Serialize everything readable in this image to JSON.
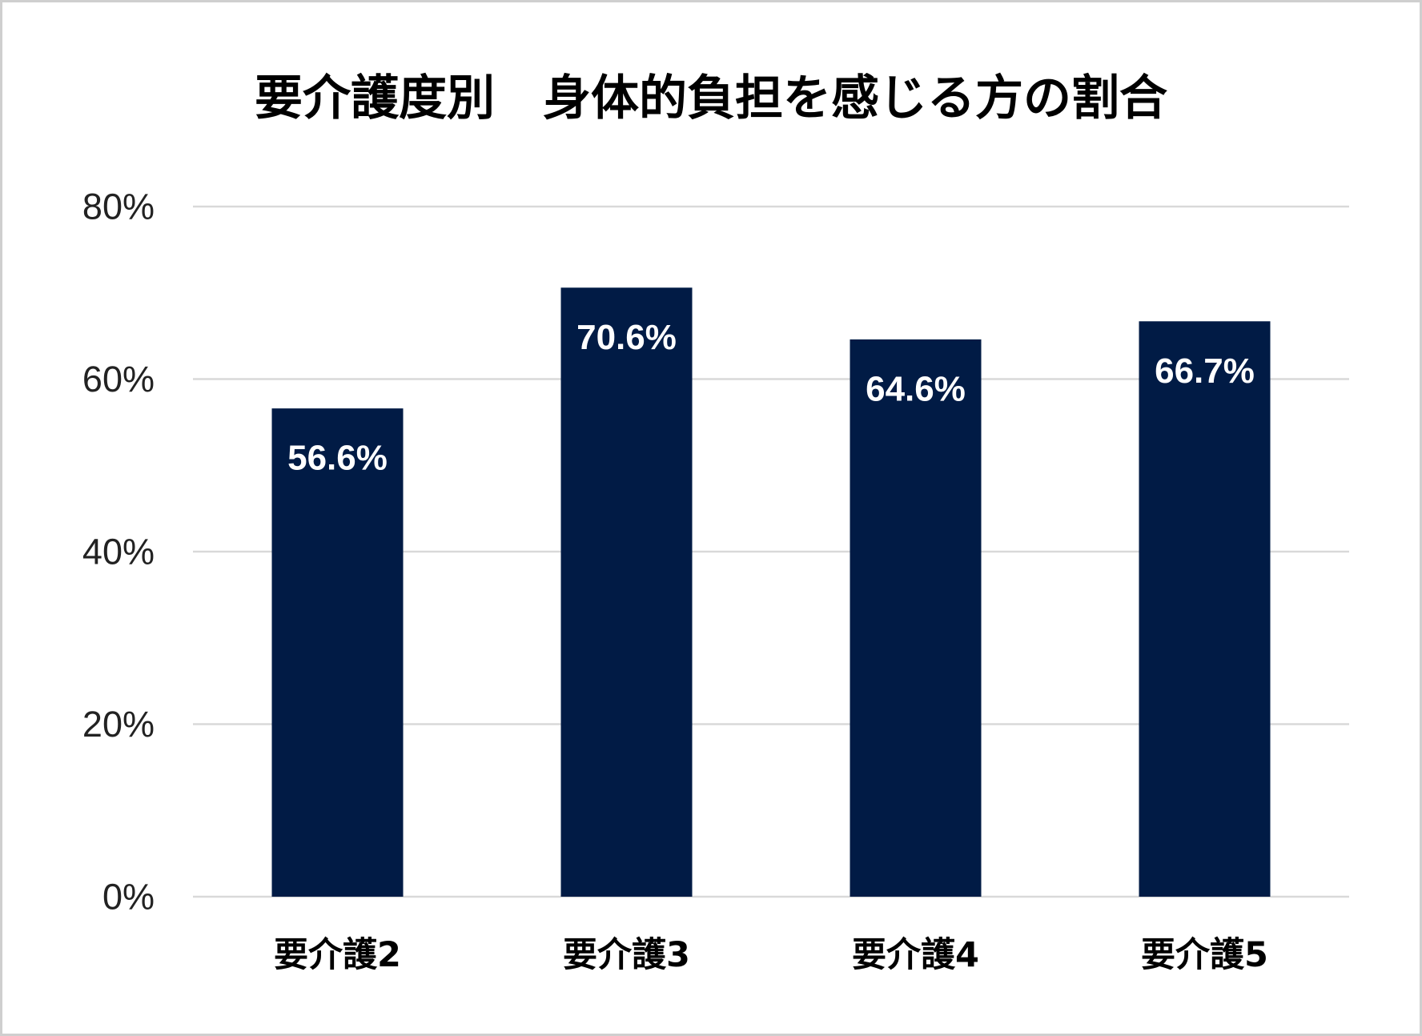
{
  "chart_data": {
    "type": "bar",
    "title": "要介護度別　身体的負担を感じる方の割合",
    "categories": [
      "要介護2",
      "要介護3",
      "要介護4",
      "要介護5"
    ],
    "values": [
      56.6,
      70.6,
      64.6,
      66.7
    ],
    "data_labels": [
      "56.6%",
      "70.6%",
      "64.6%",
      "66.7%"
    ],
    "y_ticks": [
      {
        "value": 0,
        "label": "0%"
      },
      {
        "value": 20,
        "label": "20%"
      },
      {
        "value": 40,
        "label": "40%"
      },
      {
        "value": 60,
        "label": "60%"
      },
      {
        "value": 80,
        "label": "80%"
      }
    ],
    "ylim": [
      0,
      80
    ],
    "grid": true,
    "legend": "none",
    "bar_color": "#011B45",
    "label_color": "#FFFFFF"
  }
}
